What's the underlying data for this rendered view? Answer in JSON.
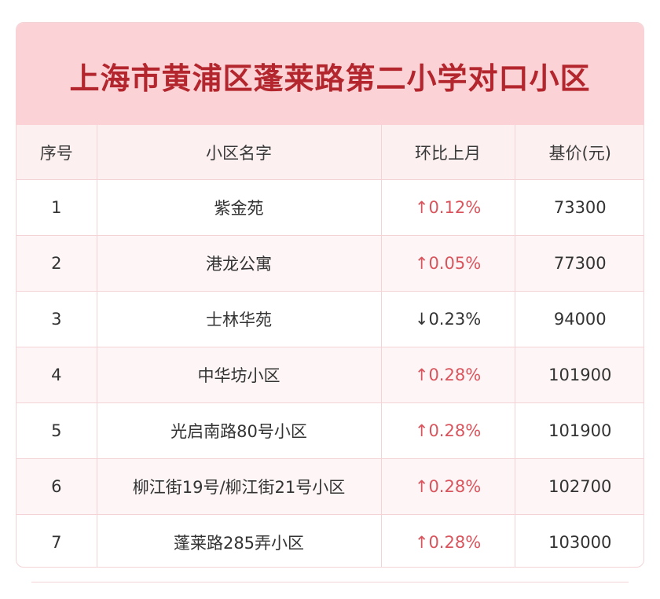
{
  "title": "上海市黄浦区蓬莱路第二小学对口小区",
  "columns": [
    "序号",
    "小区名字",
    "环比上月",
    "基价(元)"
  ],
  "rows": [
    {
      "index": "1",
      "name": "紫金苑",
      "change": "↑0.12%",
      "direction": "up",
      "price": "73300"
    },
    {
      "index": "2",
      "name": "港龙公寓",
      "change": "↑0.05%",
      "direction": "up",
      "price": "77300"
    },
    {
      "index": "3",
      "name": "士林华苑",
      "change": "↓0.23%",
      "direction": "down",
      "price": "94000"
    },
    {
      "index": "4",
      "name": "中华坊小区",
      "change": "↑0.28%",
      "direction": "up",
      "price": "101900"
    },
    {
      "index": "5",
      "name": "光启南路80号小区",
      "change": "↑0.28%",
      "direction": "up",
      "price": "101900"
    },
    {
      "index": "6",
      "name": "柳江街19号/柳江街21号小区",
      "change": "↑0.28%",
      "direction": "up",
      "price": "102700"
    },
    {
      "index": "7",
      "name": "蓬莱路285弄小区",
      "change": "↑0.28%",
      "direction": "up",
      "price": "103000"
    }
  ],
  "colors": {
    "banner_bg": "#fbd3d6",
    "title_text": "#b3262d",
    "up": "#d9545c",
    "down": "#333333",
    "border": "#f3d3d6"
  }
}
